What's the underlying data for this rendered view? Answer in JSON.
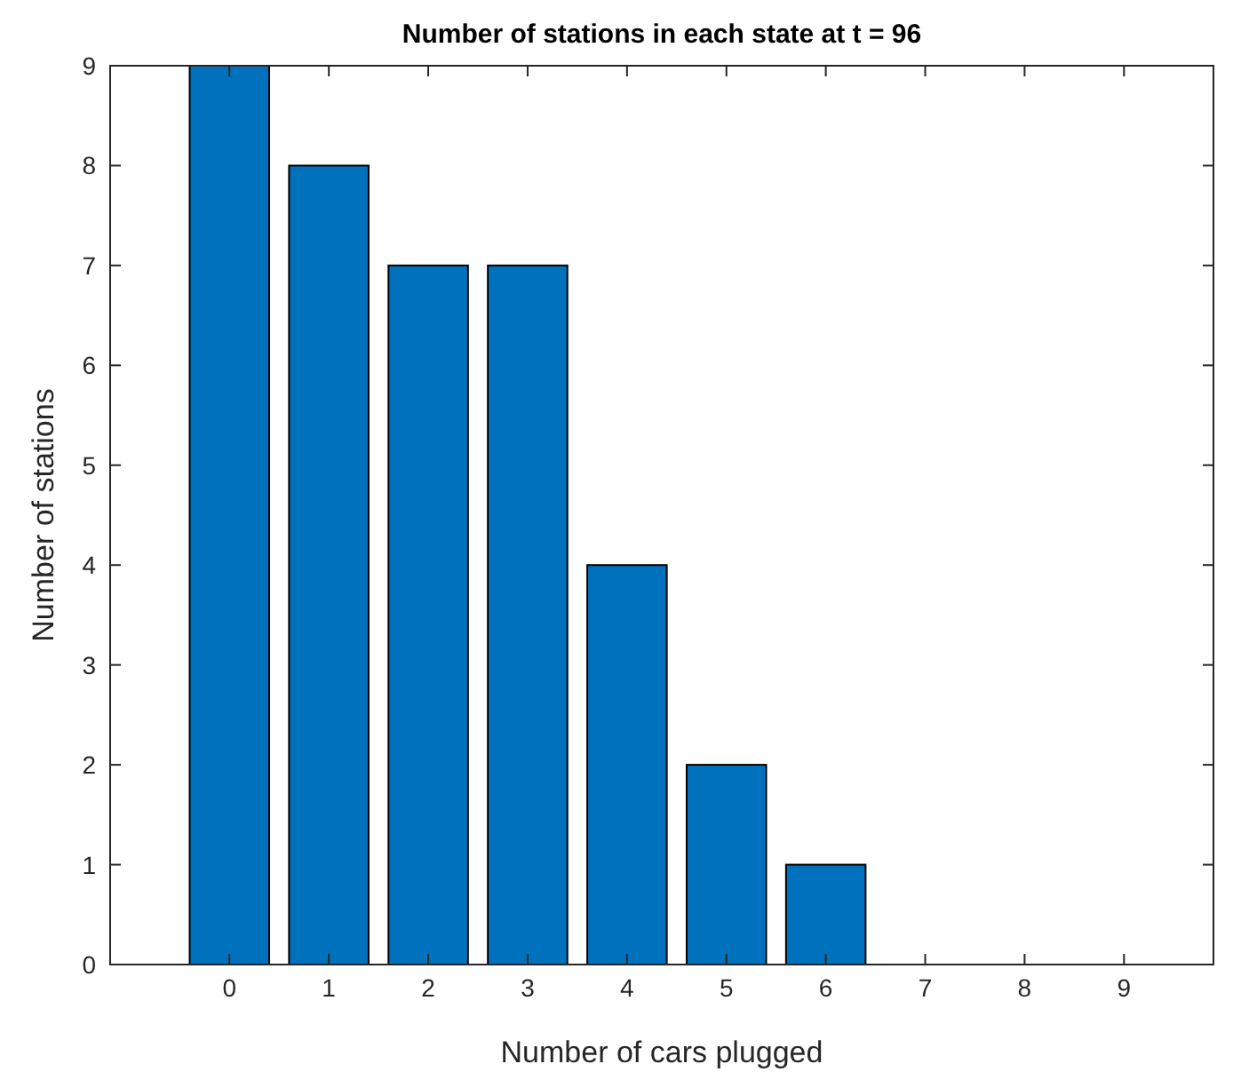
{
  "chart_data": {
    "type": "bar",
    "title": "Number of stations in each state at t = 96",
    "xlabel": "Number of cars plugged",
    "ylabel": "Number of stations",
    "x": [
      0,
      1,
      2,
      3,
      4,
      5,
      6,
      7,
      8,
      9
    ],
    "values": [
      9,
      8,
      7,
      7,
      4,
      2,
      1,
      0,
      0,
      0
    ],
    "color": "#0072bd",
    "xlim": [
      -1.2,
      9.9
    ],
    "xticks": [
      0,
      1,
      2,
      3,
      4,
      5,
      6,
      7,
      8,
      9
    ],
    "ylim": [
      0,
      9
    ],
    "yticks": [
      0,
      1,
      2,
      3,
      4,
      5,
      6,
      7,
      8,
      9
    ],
    "grid": false
  }
}
